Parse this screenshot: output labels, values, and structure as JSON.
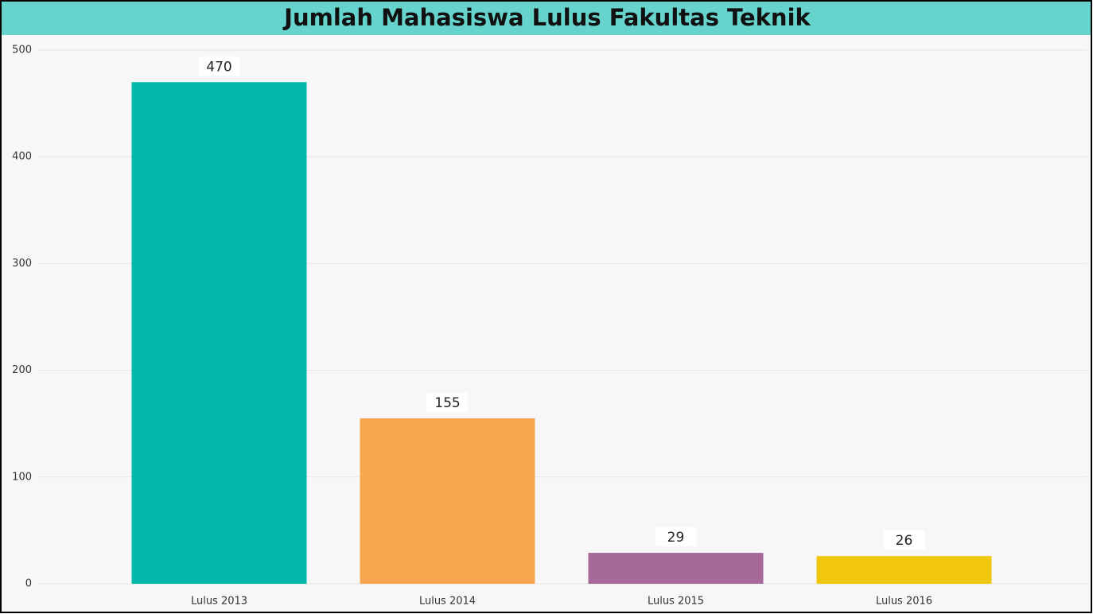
{
  "chart_data": {
    "type": "bar",
    "title": "Jumlah Mahasiswa Lulus Fakultas Teknik",
    "categories": [
      "Lulus 2013",
      "Lulus 2014",
      "Lulus 2015",
      "Lulus 2016"
    ],
    "values": [
      470,
      155,
      29,
      26
    ],
    "colors": [
      "#01b8aa",
      "#f8a54f",
      "#a66999",
      "#f2c80f"
    ],
    "ylim": [
      0,
      500
    ],
    "yticks": [
      0,
      100,
      200,
      300,
      400,
      500
    ],
    "grid": true
  }
}
